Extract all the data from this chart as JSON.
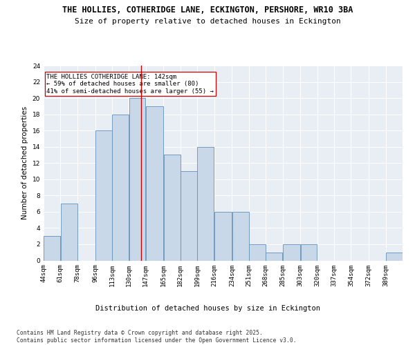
{
  "title_line1": "THE HOLLIES, COTHERIDGE LANE, ECKINGTON, PERSHORE, WR10 3BA",
  "title_line2": "Size of property relative to detached houses in Eckington",
  "xlabel": "Distribution of detached houses by size in Eckington",
  "ylabel": "Number of detached properties",
  "bin_labels": [
    "44sqm",
    "61sqm",
    "78sqm",
    "96sqm",
    "113sqm",
    "130sqm",
    "147sqm",
    "165sqm",
    "182sqm",
    "199sqm",
    "216sqm",
    "234sqm",
    "251sqm",
    "268sqm",
    "285sqm",
    "303sqm",
    "320sqm",
    "337sqm",
    "354sqm",
    "372sqm",
    "389sqm"
  ],
  "bin_edges": [
    44,
    61,
    78,
    96,
    113,
    130,
    147,
    165,
    182,
    199,
    216,
    234,
    251,
    268,
    285,
    303,
    320,
    337,
    354,
    372,
    389,
    406
  ],
  "counts": [
    3,
    7,
    0,
    16,
    18,
    20,
    19,
    13,
    11,
    14,
    6,
    6,
    2,
    1,
    2,
    2,
    0,
    0,
    0,
    0,
    1
  ],
  "bar_color": "#c8d8e8",
  "bar_edge_color": "#6090b8",
  "property_value": 142,
  "vline_color": "#cc0000",
  "annotation_text": "THE HOLLIES COTHERIDGE LANE: 142sqm\n← 59% of detached houses are smaller (80)\n41% of semi-detached houses are larger (55) →",
  "annotation_box_color": "#ffffff",
  "annotation_box_edge": "#cc0000",
  "ylim": [
    0,
    24
  ],
  "yticks": [
    0,
    2,
    4,
    6,
    8,
    10,
    12,
    14,
    16,
    18,
    20,
    22,
    24
  ],
  "background_color": "#e8eef4",
  "footer_text": "Contains HM Land Registry data © Crown copyright and database right 2025.\nContains public sector information licensed under the Open Government Licence v3.0.",
  "title_fontsize": 8.5,
  "subtitle_fontsize": 8.0,
  "axis_label_fontsize": 7.5,
  "tick_fontsize": 6.5,
  "annotation_fontsize": 6.5,
  "footer_fontsize": 5.8
}
